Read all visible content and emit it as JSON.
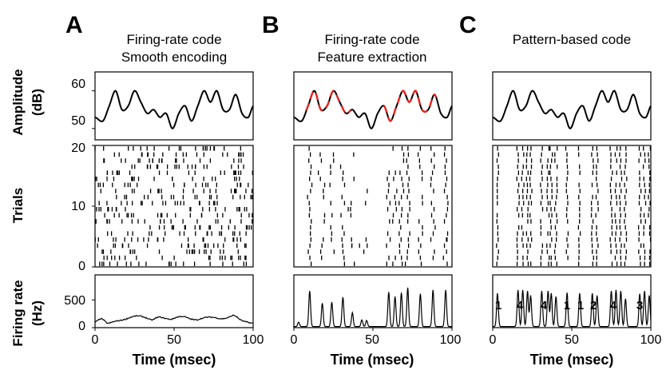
{
  "figure": {
    "panel_labels": [
      "A",
      "B",
      "C"
    ],
    "column_titles": [
      [
        "Firing-rate code",
        "Smooth encoding"
      ],
      [
        "Firing-rate code",
        "Feature extraction"
      ],
      [
        "Pattern-based code"
      ]
    ],
    "row_labels": {
      "amplitude": [
        "Amplitude",
        "(dB)"
      ],
      "trials": "Trials",
      "rate": [
        "Firing rate",
        "(Hz)"
      ]
    },
    "xlabel": "Time (msec)",
    "x_ticks": [
      "0",
      "50",
      "100"
    ],
    "amp_ticks": [
      "60",
      "50"
    ],
    "trial_ticks": [
      "20",
      "10",
      "0"
    ],
    "rate_ticks": [
      "500",
      "0"
    ],
    "pattern_labels": [
      "1",
      "4",
      "4",
      "1",
      "1",
      "2",
      "4",
      "3"
    ],
    "colors": {
      "line": "#000000",
      "highlight": "#e8231c"
    }
  },
  "chart_data": [
    {
      "type": "line",
      "panel": "A",
      "row": "amplitude",
      "ylabel": "Amplitude (dB)",
      "ylim": [
        47,
        65
      ],
      "xlim": [
        0,
        100
      ],
      "x": [
        0,
        5,
        9,
        13,
        17,
        21,
        25,
        29,
        33,
        37,
        41,
        45,
        49,
        53,
        57,
        61,
        65,
        69,
        73,
        77,
        81,
        85,
        89,
        93,
        97,
        100
      ],
      "values": [
        53,
        52,
        56,
        60,
        55,
        56,
        60,
        57,
        54,
        55,
        53,
        54,
        50,
        54,
        56,
        52,
        56,
        60,
        57,
        60,
        55,
        55,
        59,
        54,
        53,
        56
      ]
    },
    {
      "type": "line",
      "panel": "B",
      "row": "amplitude",
      "ylim": [
        47,
        65
      ],
      "xlim": [
        0,
        100
      ],
      "x": [
        0,
        5,
        9,
        13,
        17,
        21,
        25,
        29,
        33,
        37,
        41,
        45,
        49,
        53,
        57,
        61,
        65,
        69,
        73,
        77,
        81,
        85,
        89,
        93,
        97,
        100
      ],
      "values": [
        53,
        52,
        56,
        60,
        55,
        56,
        60,
        57,
        54,
        55,
        53,
        54,
        50,
        54,
        56,
        52,
        56,
        60,
        57,
        60,
        55,
        55,
        59,
        54,
        53,
        56
      ],
      "highlight_ranges": [
        [
          8,
          36
        ],
        [
          57,
          90
        ]
      ]
    },
    {
      "type": "line",
      "panel": "C",
      "row": "amplitude",
      "ylim": [
        47,
        65
      ],
      "xlim": [
        0,
        100
      ],
      "x": [
        0,
        5,
        9,
        13,
        17,
        21,
        25,
        29,
        33,
        37,
        41,
        45,
        49,
        53,
        57,
        61,
        65,
        69,
        73,
        77,
        81,
        85,
        89,
        93,
        97,
        100
      ],
      "values": [
        53,
        52,
        56,
        60,
        55,
        56,
        60,
        57,
        54,
        55,
        53,
        54,
        50,
        54,
        56,
        52,
        56,
        60,
        57,
        60,
        55,
        55,
        59,
        54,
        53,
        56
      ]
    },
    {
      "type": "scatter",
      "panel": "A",
      "row": "trials",
      "ylabel": "Trials",
      "ylim": [
        0,
        20
      ],
      "xlim": [
        0,
        100
      ],
      "description_mode": "random",
      "n_trials": 20,
      "spikes_per_trial": 20
    },
    {
      "type": "scatter",
      "panel": "B",
      "row": "trials",
      "ylim": [
        0,
        20
      ],
      "xlim": [
        0,
        100
      ],
      "description_mode": "peaks",
      "n_trials": 20,
      "peak_times": [
        10,
        18,
        24,
        31,
        37,
        43,
        46,
        60,
        64,
        68,
        72,
        80,
        88,
        96
      ],
      "peak_probs": [
        0.9,
        0.6,
        0.6,
        0.75,
        0.45,
        0.25,
        0.25,
        0.7,
        0.65,
        0.8,
        0.85,
        0.8,
        0.9,
        0.9
      ]
    },
    {
      "type": "scatter",
      "panel": "C",
      "row": "trials",
      "ylim": [
        0,
        20
      ],
      "xlim": [
        0,
        100
      ],
      "description_mode": "patterns",
      "n_trials": 20,
      "peak_times": [
        3,
        16,
        19,
        22,
        24,
        31,
        35,
        37,
        40,
        47,
        55,
        63,
        66,
        75,
        78,
        81,
        84,
        93,
        96,
        99
      ]
    },
    {
      "type": "line",
      "panel": "A",
      "row": "rate",
      "ylabel": "Firing rate (Hz)",
      "ylim": [
        0,
        950
      ],
      "xlim": [
        0,
        100
      ],
      "x": [
        0,
        4,
        8,
        12,
        16,
        20,
        24,
        28,
        32,
        36,
        40,
        44,
        48,
        52,
        56,
        60,
        64,
        68,
        72,
        76,
        80,
        84,
        88,
        92,
        96,
        100
      ],
      "values": [
        100,
        160,
        80,
        110,
        130,
        160,
        200,
        210,
        180,
        140,
        190,
        170,
        150,
        190,
        200,
        160,
        140,
        170,
        190,
        180,
        160,
        180,
        220,
        140,
        100,
        80
      ]
    },
    {
      "type": "line",
      "panel": "B",
      "row": "rate",
      "ylim": [
        0,
        950
      ],
      "xlim": [
        0,
        100
      ],
      "peaks": [
        [
          3,
          80
        ],
        [
          10,
          640
        ],
        [
          18,
          420
        ],
        [
          24,
          440
        ],
        [
          31,
          530
        ],
        [
          37,
          250
        ],
        [
          43,
          120
        ],
        [
          46,
          110
        ],
        [
          60,
          620
        ],
        [
          64,
          540
        ],
        [
          68,
          610
        ],
        [
          72,
          700
        ],
        [
          80,
          590
        ],
        [
          88,
          660
        ],
        [
          96,
          660
        ]
      ]
    },
    {
      "type": "line",
      "panel": "C",
      "row": "rate",
      "ylim": [
        0,
        950
      ],
      "xlim": [
        0,
        100
      ],
      "peaks": [
        [
          3,
          600
        ],
        [
          16,
          660
        ],
        [
          19,
          660
        ],
        [
          22,
          640
        ],
        [
          24,
          560
        ],
        [
          31,
          640
        ],
        [
          35,
          640
        ],
        [
          37,
          600
        ],
        [
          40,
          540
        ],
        [
          47,
          610
        ],
        [
          55,
          600
        ],
        [
          63,
          600
        ],
        [
          66,
          560
        ],
        [
          75,
          640
        ],
        [
          78,
          660
        ],
        [
          81,
          640
        ],
        [
          84,
          500
        ],
        [
          93,
          590
        ],
        [
          96,
          640
        ],
        [
          99,
          560
        ]
      ]
    }
  ]
}
